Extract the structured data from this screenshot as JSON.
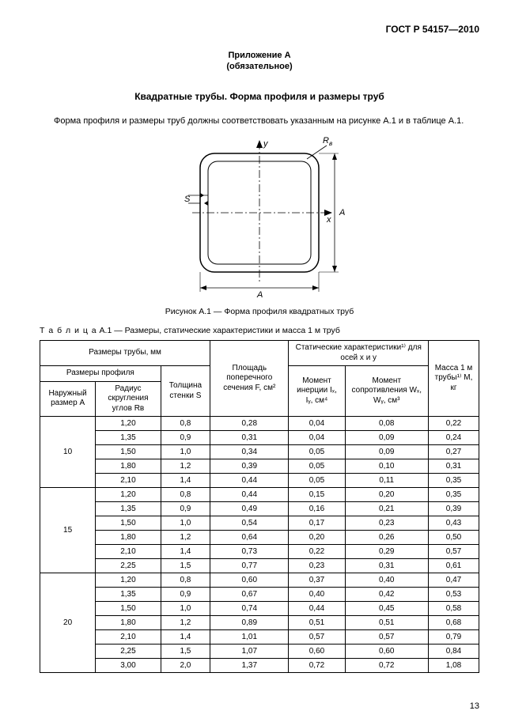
{
  "standard_id": "ГОСТ Р 54157—2010",
  "appendix_title": "Приложение А",
  "appendix_sub": "(обязательное)",
  "main_title": "Квадратные трубы. Форма профиля и размеры труб",
  "intro_text": "Форма профиля и размеры труб должны соответствовать указанным на рисунке А.1 и в таблице А.1.",
  "figure_labels": {
    "y": "y",
    "x": "x",
    "A_bottom": "A",
    "A_right": "А",
    "S": "S",
    "Rc": "Rc"
  },
  "figure_caption": "Рисунок А.1 — Форма профиля квадратных труб",
  "table_caption_prefix": "Т а б л и ц а",
  "table_caption": "  А.1 — Размеры, статические характеристики  и масса 1 м труб",
  "headers": {
    "tube_dims": "Размеры трубы, мм",
    "profile_dims": "Размеры профиля",
    "thickness": "Толщина стенки S",
    "outer_size": "Наружный размер А",
    "radius": "Радиус скругления углов Rв",
    "area": "Площадь поперечного сечения F, см²",
    "static_title": "Статические характеристики¹⁾ для осей x и y",
    "moment_inertia": "Момент инерции Iₓ, Iᵧ, см⁴",
    "moment_resist": "Момент сопротивления Wₓ, Wᵧ, см³",
    "mass": "Масса 1 м трубы¹⁾ М, кг"
  },
  "groups": [
    {
      "A": "10",
      "rows": [
        {
          "r": "1,20",
          "s": "0,8",
          "f": "0,28",
          "i": "0,04",
          "w": "0,08",
          "m": "0,22"
        },
        {
          "r": "1,35",
          "s": "0,9",
          "f": "0,31",
          "i": "0,04",
          "w": "0,09",
          "m": "0,24"
        },
        {
          "r": "1,50",
          "s": "1,0",
          "f": "0,34",
          "i": "0,05",
          "w": "0,09",
          "m": "0,27"
        },
        {
          "r": "1,80",
          "s": "1,2",
          "f": "0,39",
          "i": "0,05",
          "w": "0,10",
          "m": "0,31"
        },
        {
          "r": "2,10",
          "s": "1,4",
          "f": "0,44",
          "i": "0,05",
          "w": "0,11",
          "m": "0,35"
        }
      ]
    },
    {
      "A": "15",
      "rows": [
        {
          "r": "1,20",
          "s": "0,8",
          "f": "0,44",
          "i": "0,15",
          "w": "0,20",
          "m": "0,35"
        },
        {
          "r": "1,35",
          "s": "0,9",
          "f": "0,49",
          "i": "0,16",
          "w": "0,21",
          "m": "0,39"
        },
        {
          "r": "1,50",
          "s": "1,0",
          "f": "0,54",
          "i": "0,17",
          "w": "0,23",
          "m": "0,43"
        },
        {
          "r": "1,80",
          "s": "1,2",
          "f": "0,64",
          "i": "0,20",
          "w": "0,26",
          "m": "0,50"
        },
        {
          "r": "2,10",
          "s": "1,4",
          "f": "0,73",
          "i": "0,22",
          "w": "0,29",
          "m": "0,57"
        },
        {
          "r": "2,25",
          "s": "1,5",
          "f": "0,77",
          "i": "0,23",
          "w": "0,31",
          "m": "0,61"
        }
      ]
    },
    {
      "A": "20",
      "rows": [
        {
          "r": "1,20",
          "s": "0,8",
          "f": "0,60",
          "i": "0,37",
          "w": "0,40",
          "m": "0,47"
        },
        {
          "r": "1,35",
          "s": "0,9",
          "f": "0,67",
          "i": "0,40",
          "w": "0,42",
          "m": "0,53"
        },
        {
          "r": "1,50",
          "s": "1,0",
          "f": "0,74",
          "i": "0,44",
          "w": "0,45",
          "m": "0,58"
        },
        {
          "r": "1,80",
          "s": "1,2",
          "f": "0,89",
          "i": "0,51",
          "w": "0,51",
          "m": "0,68"
        },
        {
          "r": "2,10",
          "s": "1,4",
          "f": "1,01",
          "i": "0,57",
          "w": "0,57",
          "m": "0,79"
        },
        {
          "r": "2,25",
          "s": "1,5",
          "f": "1,07",
          "i": "0,60",
          "w": "0,60",
          "m": "0,84"
        },
        {
          "r": "3,00",
          "s": "2,0",
          "f": "1,37",
          "i": "0,72",
          "w": "0,72",
          "m": "1,08"
        }
      ]
    }
  ],
  "page_number": "13",
  "svg": {
    "overall": 220,
    "stroke": "#000000",
    "fill": "#ffffff"
  }
}
